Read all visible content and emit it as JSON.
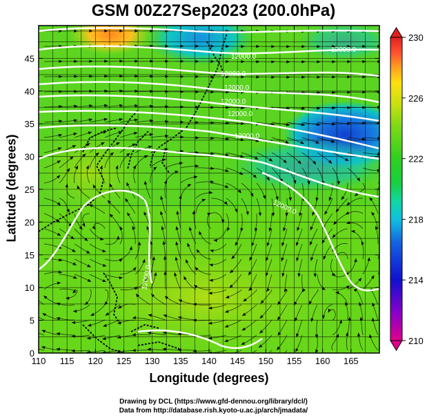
{
  "title": "GSM 00Z27Sep2023 (200.0hPa)",
  "x_axis": {
    "label": "Longitude (degrees)",
    "range": [
      110,
      170
    ],
    "ticks": [
      "110",
      "115",
      "120",
      "125",
      "130",
      "135",
      "140",
      "145",
      "150",
      "155",
      "160",
      "165"
    ]
  },
  "y_axis": {
    "label": "Latitude  (degrees)",
    "range": [
      0,
      50
    ],
    "ticks": [
      "0",
      "5",
      "10",
      "15",
      "20",
      "25",
      "30",
      "35",
      "40",
      "45"
    ]
  },
  "colorbar": {
    "range": [
      210,
      230
    ],
    "labels": [
      "230",
      "226",
      "222",
      "218",
      "214",
      "210"
    ],
    "stops": [
      "#e0008c",
      "#8a00c8",
      "#1010d0",
      "#1560e0",
      "#10c0e0",
      "#10d8a0",
      "#18d040",
      "#30d020",
      "#78d818",
      "#c8e010",
      "#ffe010",
      "#ffa020",
      "#ff5030",
      "#e02020"
    ]
  },
  "contour_labels": [
    "12000.0",
    "12000.0",
    "12000.0",
    "12000.0",
    "12000.0",
    "12000.0",
    "12000.0",
    "12000.0",
    "12000.0"
  ],
  "credits": {
    "line1": "Drawing by DCL (https://www.gfd-dennou.org/library/dcl/)",
    "line2": "Data from http://database.rish.kyoto-u.ac.jp/arch/jmadata/"
  }
}
